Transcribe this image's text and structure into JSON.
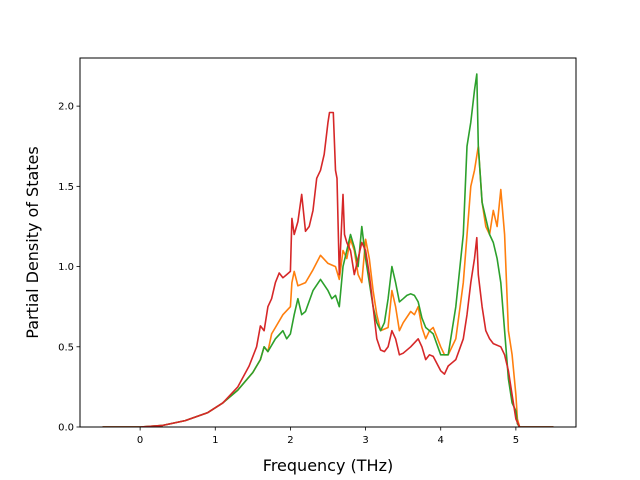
{
  "chart_data": {
    "type": "line",
    "title": "",
    "xlabel": "Frequency (THz)",
    "ylabel": "Partial Density of States",
    "xlim": [
      -0.8,
      5.8
    ],
    "ylim": [
      0.0,
      2.3
    ],
    "grid": false,
    "legend": "none",
    "x_ticks": [
      0,
      1,
      2,
      3,
      4,
      5
    ],
    "x_tick_labels": [
      "0",
      "1",
      "2",
      "3",
      "4",
      "5"
    ],
    "y_ticks": [
      0.0,
      0.5,
      1.0,
      1.5,
      2.0
    ],
    "y_tick_labels": [
      "0.0",
      "0.5",
      "1.0",
      "1.5",
      "2.0"
    ],
    "series": [
      {
        "color": "#ff7f0e",
        "points": [
          [
            -0.5,
            0
          ],
          [
            0,
            0
          ],
          [
            0.3,
            0.01
          ],
          [
            0.6,
            0.04
          ],
          [
            0.9,
            0.09
          ],
          [
            1.1,
            0.15
          ],
          [
            1.3,
            0.23
          ],
          [
            1.5,
            0.34
          ],
          [
            1.6,
            0.42
          ],
          [
            1.65,
            0.5
          ],
          [
            1.7,
            0.47
          ],
          [
            1.75,
            0.58
          ],
          [
            1.8,
            0.62
          ],
          [
            1.9,
            0.7
          ],
          [
            2.0,
            0.75
          ],
          [
            2.02,
            0.9
          ],
          [
            2.05,
            0.97
          ],
          [
            2.1,
            0.88
          ],
          [
            2.2,
            0.9
          ],
          [
            2.3,
            0.98
          ],
          [
            2.4,
            1.07
          ],
          [
            2.5,
            1.02
          ],
          [
            2.6,
            1.0
          ],
          [
            2.65,
            0.92
          ],
          [
            2.7,
            1.1
          ],
          [
            2.75,
            1.05
          ],
          [
            2.8,
            1.17
          ],
          [
            2.85,
            1.1
          ],
          [
            2.9,
            0.95
          ],
          [
            2.95,
            0.9
          ],
          [
            3.0,
            1.17
          ],
          [
            3.05,
            1.05
          ],
          [
            3.1,
            0.85
          ],
          [
            3.15,
            0.7
          ],
          [
            3.2,
            0.6
          ],
          [
            3.3,
            0.62
          ],
          [
            3.35,
            0.85
          ],
          [
            3.4,
            0.75
          ],
          [
            3.45,
            0.6
          ],
          [
            3.5,
            0.65
          ],
          [
            3.6,
            0.72
          ],
          [
            3.65,
            0.7
          ],
          [
            3.7,
            0.75
          ],
          [
            3.75,
            0.62
          ],
          [
            3.8,
            0.55
          ],
          [
            3.85,
            0.6
          ],
          [
            3.9,
            0.62
          ],
          [
            4.0,
            0.5
          ],
          [
            4.05,
            0.45
          ],
          [
            4.1,
            0.45
          ],
          [
            4.15,
            0.5
          ],
          [
            4.2,
            0.55
          ],
          [
            4.3,
            0.9
          ],
          [
            4.4,
            1.5
          ],
          [
            4.45,
            1.6
          ],
          [
            4.5,
            1.75
          ],
          [
            4.55,
            1.4
          ],
          [
            4.6,
            1.25
          ],
          [
            4.65,
            1.2
          ],
          [
            4.7,
            1.35
          ],
          [
            4.75,
            1.25
          ],
          [
            4.8,
            1.48
          ],
          [
            4.85,
            1.2
          ],
          [
            4.9,
            0.6
          ],
          [
            4.95,
            0.45
          ],
          [
            5.0,
            0.2
          ],
          [
            5.02,
            0.05
          ],
          [
            5.05,
            0
          ],
          [
            5.5,
            0
          ]
        ]
      },
      {
        "color": "#2ca02c",
        "points": [
          [
            -0.5,
            0
          ],
          [
            0,
            0
          ],
          [
            0.3,
            0.01
          ],
          [
            0.6,
            0.04
          ],
          [
            0.9,
            0.09
          ],
          [
            1.1,
            0.15
          ],
          [
            1.3,
            0.23
          ],
          [
            1.5,
            0.34
          ],
          [
            1.6,
            0.42
          ],
          [
            1.65,
            0.5
          ],
          [
            1.7,
            0.47
          ],
          [
            1.8,
            0.55
          ],
          [
            1.9,
            0.6
          ],
          [
            1.95,
            0.55
          ],
          [
            2.0,
            0.58
          ],
          [
            2.05,
            0.7
          ],
          [
            2.1,
            0.8
          ],
          [
            2.15,
            0.7
          ],
          [
            2.2,
            0.72
          ],
          [
            2.3,
            0.85
          ],
          [
            2.4,
            0.92
          ],
          [
            2.5,
            0.85
          ],
          [
            2.55,
            0.8
          ],
          [
            2.6,
            0.82
          ],
          [
            2.65,
            0.75
          ],
          [
            2.7,
            1.0
          ],
          [
            2.75,
            1.1
          ],
          [
            2.8,
            1.2
          ],
          [
            2.85,
            1.12
          ],
          [
            2.9,
            1.0
          ],
          [
            2.95,
            1.25
          ],
          [
            3.0,
            1.05
          ],
          [
            3.1,
            0.75
          ],
          [
            3.15,
            0.65
          ],
          [
            3.2,
            0.6
          ],
          [
            3.25,
            0.65
          ],
          [
            3.3,
            0.8
          ],
          [
            3.35,
            1.0
          ],
          [
            3.4,
            0.9
          ],
          [
            3.45,
            0.78
          ],
          [
            3.5,
            0.8
          ],
          [
            3.55,
            0.82
          ],
          [
            3.6,
            0.83
          ],
          [
            3.65,
            0.82
          ],
          [
            3.7,
            0.78
          ],
          [
            3.75,
            0.68
          ],
          [
            3.8,
            0.62
          ],
          [
            3.85,
            0.6
          ],
          [
            3.9,
            0.58
          ],
          [
            4.0,
            0.45
          ],
          [
            4.1,
            0.45
          ],
          [
            4.15,
            0.6
          ],
          [
            4.2,
            0.75
          ],
          [
            4.3,
            1.2
          ],
          [
            4.35,
            1.75
          ],
          [
            4.4,
            1.9
          ],
          [
            4.45,
            2.1
          ],
          [
            4.48,
            2.2
          ],
          [
            4.5,
            1.75
          ],
          [
            4.55,
            1.4
          ],
          [
            4.6,
            1.3
          ],
          [
            4.65,
            1.2
          ],
          [
            4.7,
            1.15
          ],
          [
            4.75,
            1.05
          ],
          [
            4.8,
            0.9
          ],
          [
            4.85,
            0.6
          ],
          [
            4.9,
            0.3
          ],
          [
            4.95,
            0.15
          ],
          [
            5.0,
            0.1
          ],
          [
            5.02,
            0.02
          ],
          [
            5.05,
            0
          ],
          [
            5.5,
            0
          ]
        ]
      },
      {
        "color": "#d62728",
        "points": [
          [
            -0.5,
            0
          ],
          [
            0,
            0
          ],
          [
            0.3,
            0.01
          ],
          [
            0.6,
            0.04
          ],
          [
            0.9,
            0.09
          ],
          [
            1.1,
            0.15
          ],
          [
            1.3,
            0.25
          ],
          [
            1.45,
            0.38
          ],
          [
            1.55,
            0.5
          ],
          [
            1.6,
            0.63
          ],
          [
            1.65,
            0.6
          ],
          [
            1.7,
            0.75
          ],
          [
            1.75,
            0.8
          ],
          [
            1.8,
            0.9
          ],
          [
            1.85,
            0.96
          ],
          [
            1.9,
            0.93
          ],
          [
            1.95,
            0.95
          ],
          [
            2.0,
            0.97
          ],
          [
            2.02,
            1.3
          ],
          [
            2.05,
            1.2
          ],
          [
            2.1,
            1.28
          ],
          [
            2.15,
            1.45
          ],
          [
            2.2,
            1.22
          ],
          [
            2.25,
            1.25
          ],
          [
            2.3,
            1.35
          ],
          [
            2.35,
            1.55
          ],
          [
            2.4,
            1.6
          ],
          [
            2.45,
            1.7
          ],
          [
            2.5,
            1.9
          ],
          [
            2.52,
            1.96
          ],
          [
            2.57,
            1.96
          ],
          [
            2.6,
            1.6
          ],
          [
            2.62,
            1.55
          ],
          [
            2.65,
            0.95
          ],
          [
            2.7,
            1.45
          ],
          [
            2.72,
            1.2
          ],
          [
            2.75,
            1.15
          ],
          [
            2.8,
            1.1
          ],
          [
            2.85,
            0.95
          ],
          [
            2.9,
            1.05
          ],
          [
            2.95,
            1.15
          ],
          [
            3.0,
            1.1
          ],
          [
            3.05,
            0.95
          ],
          [
            3.1,
            0.75
          ],
          [
            3.15,
            0.55
          ],
          [
            3.2,
            0.48
          ],
          [
            3.25,
            0.47
          ],
          [
            3.3,
            0.5
          ],
          [
            3.35,
            0.6
          ],
          [
            3.4,
            0.55
          ],
          [
            3.45,
            0.45
          ],
          [
            3.5,
            0.46
          ],
          [
            3.6,
            0.5
          ],
          [
            3.7,
            0.55
          ],
          [
            3.75,
            0.5
          ],
          [
            3.8,
            0.42
          ],
          [
            3.85,
            0.45
          ],
          [
            3.9,
            0.44
          ],
          [
            4.0,
            0.35
          ],
          [
            4.05,
            0.33
          ],
          [
            4.1,
            0.38
          ],
          [
            4.15,
            0.4
          ],
          [
            4.2,
            0.42
          ],
          [
            4.3,
            0.55
          ],
          [
            4.35,
            0.7
          ],
          [
            4.4,
            0.9
          ],
          [
            4.45,
            1.05
          ],
          [
            4.48,
            1.18
          ],
          [
            4.5,
            0.95
          ],
          [
            4.55,
            0.75
          ],
          [
            4.6,
            0.6
          ],
          [
            4.65,
            0.55
          ],
          [
            4.7,
            0.52
          ],
          [
            4.8,
            0.5
          ],
          [
            4.85,
            0.45
          ],
          [
            4.9,
            0.35
          ],
          [
            4.95,
            0.2
          ],
          [
            5.0,
            0.05
          ],
          [
            5.05,
            0
          ],
          [
            5.5,
            0
          ]
        ]
      }
    ]
  }
}
